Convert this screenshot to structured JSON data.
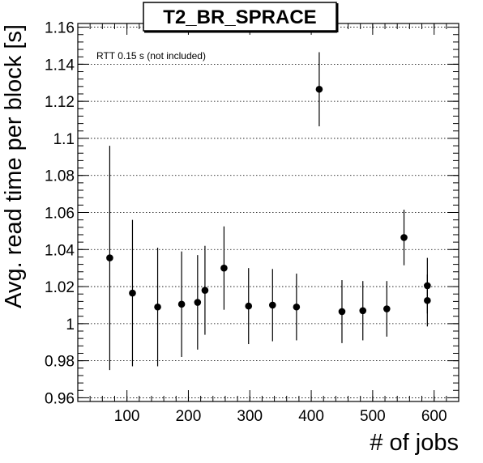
{
  "chart_data": {
    "type": "scatter",
    "title": "T2_BR_SPRACE",
    "xlabel": "# of jobs",
    "ylabel": "Avg. read time per block [s]",
    "annotation": "RTT 0.15 s (not included)",
    "xlim": [
      20,
      640
    ],
    "ylim": [
      0.958,
      1.162
    ],
    "x_ticks": [
      100,
      200,
      300,
      400,
      500,
      600
    ],
    "x_tick_labels": [
      "100",
      "200",
      "300",
      "400",
      "500",
      "600"
    ],
    "y_ticks": [
      0.96,
      0.98,
      1.0,
      1.02,
      1.04,
      1.06,
      1.08,
      1.1,
      1.12,
      1.14,
      1.16
    ],
    "y_tick_labels": [
      "0.96",
      "0.98",
      "1",
      "1.02",
      "1.04",
      "1.06",
      "1.08",
      "1.1",
      "1.12",
      "1.14",
      "1.16"
    ],
    "grid": "y-dotted",
    "points": [
      {
        "x": 72,
        "y": 1.0355,
        "err": 0.0605
      },
      {
        "x": 109,
        "y": 1.0165,
        "err": 0.0395
      },
      {
        "x": 150,
        "y": 1.009,
        "err": 0.032
      },
      {
        "x": 189,
        "y": 1.0105,
        "err": 0.0285
      },
      {
        "x": 215,
        "y": 1.0115,
        "err": 0.0255
      },
      {
        "x": 227,
        "y": 1.018,
        "err": 0.024
      },
      {
        "x": 258,
        "y": 1.03,
        "err": 0.0225
      },
      {
        "x": 298,
        "y": 1.0095,
        "err": 0.0205
      },
      {
        "x": 337,
        "y": 1.01,
        "err": 0.0195
      },
      {
        "x": 376,
        "y": 1.009,
        "err": 0.018
      },
      {
        "x": 413,
        "y": 1.1265,
        "err": 0.02
      },
      {
        "x": 450,
        "y": 1.0065,
        "err": 0.017
      },
      {
        "x": 484,
        "y": 1.007,
        "err": 0.016
      },
      {
        "x": 523,
        "y": 1.008,
        "err": 0.015
      },
      {
        "x": 551,
        "y": 1.0465,
        "err": 0.015
      },
      {
        "x": 589,
        "y": 1.0205,
        "err": 0.015
      },
      {
        "x": 589,
        "y": 1.0125,
        "err": 0.014
      }
    ]
  }
}
